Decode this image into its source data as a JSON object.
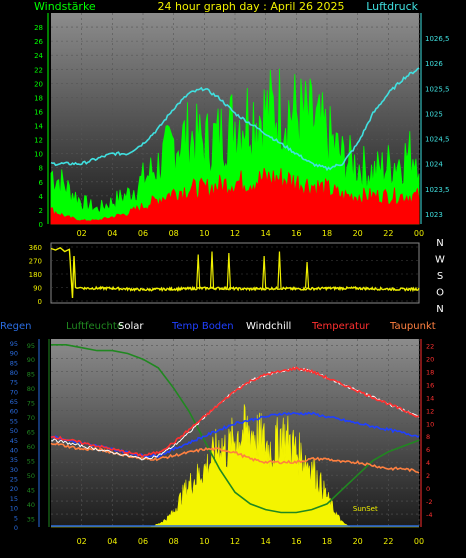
{
  "title": "24 hour graph day : April 26 2025",
  "chart_data": [
    {
      "type": "line",
      "panel": "wind-pressure",
      "title": "24 hour graph day : April 26 2025",
      "left_axis_label": "Windstärke",
      "right_axis_label": "Luftdruck",
      "x_ticks": [
        "02",
        "04",
        "06",
        "08",
        "10",
        "12",
        "14",
        "16",
        "18",
        "20",
        "22",
        "00"
      ],
      "left_ticks": [
        "0",
        "2",
        "4",
        "6",
        "8",
        "10",
        "12",
        "14",
        "16",
        "18",
        "20",
        "22",
        "24",
        "26",
        "28"
      ],
      "right_ticks": [
        "1023",
        "1023,5",
        "1024",
        "1024,5",
        "1025",
        "1025,5",
        "1026",
        "1026,5"
      ],
      "ylim_left": [
        0,
        30
      ],
      "ylim_right": [
        1022.8,
        1027.0
      ],
      "colors": {
        "gust": "#00ff00",
        "wind": "#ff0000",
        "pressure": "#40e0e0",
        "left_axis": "#00ff00",
        "right_axis": "#40e0e0"
      },
      "series": [
        {
          "role": "gust",
          "x": [
            0,
            1,
            2,
            3,
            4,
            5,
            6,
            7,
            8,
            9,
            10,
            11,
            12,
            13,
            14,
            15,
            16,
            17,
            18,
            19,
            20,
            21,
            22,
            23,
            24
          ],
          "values": [
            7,
            5,
            3,
            2,
            3,
            4,
            6,
            8,
            11,
            12,
            11,
            12,
            14,
            15,
            15,
            16,
            15,
            14,
            12,
            9,
            8,
            7,
            8,
            9,
            10
          ]
        },
        {
          "role": "wind",
          "x": [
            0,
            1,
            2,
            3,
            4,
            5,
            6,
            7,
            8,
            9,
            10,
            11,
            12,
            13,
            14,
            15,
            16,
            17,
            18,
            19,
            20,
            21,
            22,
            23,
            24
          ],
          "values": [
            2,
            1,
            0.5,
            0.5,
            1,
            1.5,
            2.5,
            3.5,
            4.5,
            5,
            5,
            5.5,
            6,
            6,
            6.5,
            6.5,
            6,
            5.5,
            5,
            4,
            4,
            4,
            4,
            4,
            4
          ]
        },
        {
          "role": "pressure",
          "x": [
            0,
            1,
            2,
            3,
            4,
            5,
            6,
            7,
            8,
            9,
            10,
            11,
            12,
            13,
            14,
            15,
            16,
            17,
            18,
            19,
            20,
            21,
            22,
            23,
            24
          ],
          "values": [
            1024.0,
            1024.0,
            1024.0,
            1024.1,
            1024.2,
            1024.2,
            1024.4,
            1024.7,
            1025.1,
            1025.4,
            1025.5,
            1025.3,
            1025.0,
            1024.8,
            1024.6,
            1024.4,
            1024.2,
            1024.0,
            1023.9,
            1024.0,
            1024.4,
            1025.0,
            1025.4,
            1025.7,
            1025.9
          ]
        }
      ]
    },
    {
      "type": "line",
      "panel": "wind-direction",
      "left_ticks": [
        "0",
        "90",
        "180",
        "270",
        "360"
      ],
      "right_labels": [
        "N",
        "W",
        "S",
        "O",
        "N"
      ],
      "ylim": [
        0,
        360
      ],
      "color": "#f0f000",
      "series": [
        {
          "role": "direction",
          "x": [
            0,
            0.3,
            0.6,
            0.9,
            1.2,
            1.4,
            1.5,
            1.6,
            1.7,
            1.9,
            2.2,
            3,
            4,
            5,
            6,
            7,
            8,
            9,
            10,
            11,
            12,
            13,
            14,
            15,
            16,
            17,
            18,
            19,
            20,
            21,
            22,
            23,
            24
          ],
          "values": [
            350,
            340,
            355,
            330,
            345,
            20,
            300,
            90,
            85,
            90,
            85,
            85,
            85,
            80,
            75,
            78,
            80,
            82,
            85,
            85,
            82,
            80,
            82,
            85,
            80,
            82,
            85,
            85,
            85,
            82,
            80,
            78,
            80
          ]
        }
      ],
      "spikes": [
        [
          9.6,
          310
        ],
        [
          10.5,
          330
        ],
        [
          11.6,
          320
        ],
        [
          13.9,
          300
        ],
        [
          14.9,
          330
        ],
        [
          16.7,
          260
        ]
      ]
    },
    {
      "type": "line",
      "panel": "temperature-humidity",
      "legend": [
        "Regen",
        "Luftfeuchte",
        "Solar",
        "Temp Boden",
        "Windchill",
        "Temperatur",
        "Taupunkt"
      ],
      "legend_colors": {
        "Regen": "#2a6ce0",
        "Luftfeuchte": "#208820",
        "Solar": "#ffffff",
        "Temp Boden": "#2040ff",
        "Windchill": "#ffffff",
        "Temperatur": "#ff3030",
        "Taupunkt": "#ff8040"
      },
      "x_ticks": [
        "02",
        "04",
        "06",
        "08",
        "10",
        "12",
        "14",
        "16",
        "18",
        "20",
        "22",
        "00"
      ],
      "left_ticks": [
        "0",
        "5",
        "10",
        "15",
        "20",
        "25",
        "30",
        "35",
        "40",
        "45",
        "50",
        "55",
        "60",
        "65",
        "70",
        "75",
        "80",
        "85",
        "90",
        "95"
      ],
      "humidity_ticks": [
        "35",
        "40",
        "45",
        "50",
        "55",
        "60",
        "65",
        "70",
        "75",
        "80",
        "85",
        "90",
        "95"
      ],
      "right_ticks": [
        "-4",
        "-2",
        "0",
        "2",
        "4",
        "6",
        "8",
        "10",
        "12",
        "14",
        "16",
        "18",
        "20",
        "22"
      ],
      "annotations": [
        "SunSet"
      ],
      "ylim_right": [
        -6,
        23
      ],
      "series": [
        {
          "name": "Luftfeuchte",
          "axis": "humidity",
          "x": [
            0,
            1,
            2,
            3,
            4,
            5,
            6,
            7,
            8,
            9,
            10,
            11,
            12,
            13,
            14,
            15,
            16,
            17,
            18,
            19,
            20,
            21,
            22,
            23,
            24
          ],
          "values": [
            95,
            95,
            94,
            93,
            93,
            92,
            90,
            87,
            80,
            72,
            62,
            52,
            44,
            40,
            38,
            37,
            37,
            38,
            40,
            45,
            50,
            55,
            58,
            60,
            62
          ]
        },
        {
          "name": "Temperatur",
          "axis": "temp",
          "x": [
            0,
            1,
            2,
            3,
            4,
            5,
            6,
            7,
            8,
            9,
            10,
            11,
            12,
            13,
            14,
            15,
            16,
            17,
            18,
            19,
            20,
            21,
            22,
            23,
            24
          ],
          "values": [
            8,
            7.5,
            7,
            6.5,
            6,
            5.5,
            5,
            5.5,
            7,
            9,
            11,
            13,
            15,
            16.5,
            17.5,
            18,
            18.5,
            18,
            17,
            16,
            15,
            14,
            13,
            12,
            11
          ]
        },
        {
          "name": "Temp Boden",
          "axis": "temp",
          "x": [
            0,
            1,
            2,
            3,
            4,
            5,
            6,
            7,
            8,
            9,
            10,
            11,
            12,
            13,
            14,
            15,
            16,
            17,
            18,
            19,
            20,
            21,
            22,
            23,
            24
          ],
          "values": [
            8,
            7.5,
            7,
            6.5,
            6,
            5.5,
            5,
            5,
            6,
            7,
            8,
            9,
            10,
            10.5,
            11,
            11.5,
            11.5,
            11.5,
            11,
            10.5,
            10,
            9.5,
            9,
            8.5,
            8
          ]
        },
        {
          "name": "Windchill",
          "axis": "temp",
          "x": [
            0,
            1,
            2,
            3,
            4,
            5,
            6,
            7,
            8,
            9,
            10,
            11,
            12,
            13,
            14,
            15,
            16,
            17,
            18,
            19,
            20,
            21,
            22,
            23,
            24
          ],
          "values": [
            7.5,
            7,
            6.5,
            6,
            5.5,
            5,
            4.5,
            5,
            6.5,
            8.5,
            11,
            13,
            15,
            16.5,
            17.5,
            18,
            18.5,
            18,
            17,
            16,
            15,
            14,
            13,
            12,
            11
          ]
        },
        {
          "name": "Taupunkt",
          "axis": "temp",
          "x": [
            0,
            1,
            2,
            3,
            4,
            5,
            6,
            7,
            8,
            9,
            10,
            11,
            12,
            13,
            14,
            15,
            16,
            17,
            18,
            19,
            20,
            21,
            22,
            23,
            24
          ],
          "values": [
            7,
            6.5,
            6,
            6,
            5.5,
            5,
            4.5,
            4.5,
            5,
            5.5,
            6,
            6,
            5.5,
            4.5,
            4,
            4,
            4,
            4.5,
            4.5,
            4,
            4,
            3.5,
            3,
            3,
            2.5
          ]
        },
        {
          "name": "Solar",
          "axis": "solar",
          "x": [
            0,
            6.5,
            7,
            7.5,
            8,
            8.5,
            9,
            9.5,
            10,
            10.5,
            11,
            11.5,
            12,
            12.5,
            13,
            13.5,
            14,
            14.5,
            15,
            15.5,
            16,
            16.5,
            17,
            17.5,
            18,
            18.5,
            19,
            19.5,
            24
          ],
          "values": [
            0,
            0,
            2,
            5,
            10,
            20,
            28,
            33,
            38,
            45,
            55,
            50,
            60,
            62,
            64,
            60,
            55,
            50,
            62,
            58,
            50,
            45,
            40,
            30,
            20,
            10,
            3,
            0,
            0
          ]
        }
      ]
    }
  ]
}
